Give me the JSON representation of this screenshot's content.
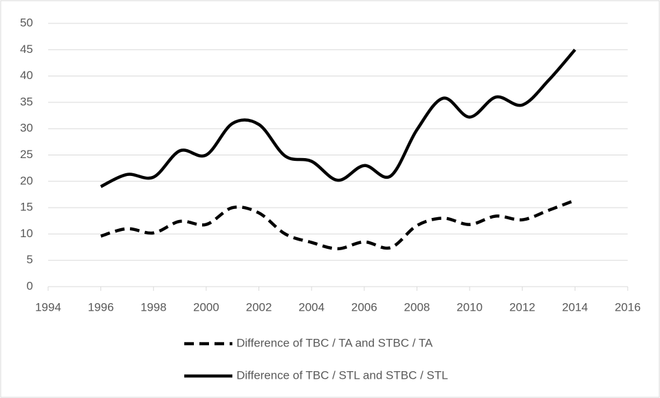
{
  "chart_data": {
    "type": "line",
    "x": [
      1996,
      1997,
      1998,
      1999,
      2000,
      2001,
      2002,
      2003,
      2004,
      2005,
      2006,
      2007,
      2008,
      2009,
      2010,
      2011,
      2012,
      2013,
      2014
    ],
    "series": [
      {
        "name": "Difference of TBC / TA and STBC / TA",
        "color": "#000000",
        "dashed": true,
        "values": [
          9.6,
          11,
          10.2,
          12.4,
          11.8,
          15,
          14,
          10,
          8.4,
          7.2,
          8.5,
          7.4,
          11.6,
          13,
          11.8,
          13.4,
          12.7,
          14.5,
          16.4
        ]
      },
      {
        "name": "Difference of TBC / STL and STBC / STL",
        "color": "#000000",
        "dashed": false,
        "values": [
          19,
          21.3,
          20.8,
          25.8,
          25,
          31,
          30.8,
          24.8,
          23.8,
          20.2,
          23,
          21,
          29.8,
          35.8,
          32.2,
          36,
          34.5,
          39.2,
          45
        ]
      }
    ],
    "xlim": [
      1994,
      2016
    ],
    "xticks": [
      1994,
      1996,
      1998,
      2000,
      2002,
      2004,
      2006,
      2008,
      2010,
      2012,
      2014,
      2016
    ],
    "ylim": [
      0,
      50
    ],
    "yticks": [
      0,
      5,
      10,
      15,
      20,
      25,
      30,
      35,
      40,
      45,
      50
    ],
    "grid": true,
    "smooth": true,
    "legend": "bottom"
  }
}
